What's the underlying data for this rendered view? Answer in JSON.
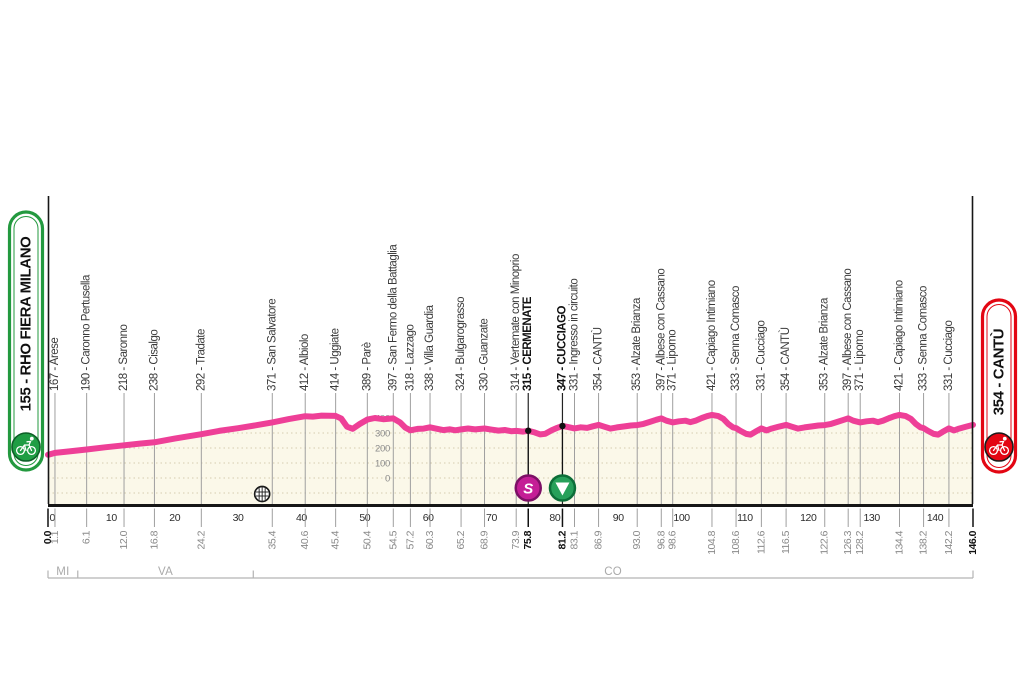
{
  "colors": {
    "profile_pink": "#ee3f97",
    "fill_cream": "#fbf8e9",
    "grid_dots": "#d6cdb0",
    "axis_black": "#161616",
    "waypoint_line": "#9f9f9f",
    "label_text": "#3a3a3a",
    "muted_text": "#8a8a8a",
    "province_gray": "#aaaaaa",
    "start_green": "#1f9d44",
    "finish_red": "#e30613",
    "sprint_fill": "#c41e96",
    "sprint_stroke": "#7d1066",
    "feed_fill": "#27a05a",
    "feed_stroke": "#0c6e38"
  },
  "chart_data": {
    "type": "line",
    "subject": "cycling-stage-elevation-profile",
    "x_unit": "km",
    "y_unit": "m",
    "xlim": [
      0,
      146
    ],
    "x_ticks": [
      0,
      10,
      20,
      30,
      40,
      50,
      60,
      70,
      80,
      90,
      100,
      110,
      120,
      130,
      140
    ],
    "elevation_scale_labels": [
      400,
      300,
      200,
      100,
      0
    ],
    "grid": true,
    "start": {
      "km": 0.0,
      "elevation": 155,
      "label": "155 - RHO FIERA MILANO",
      "distance_label": "0.0"
    },
    "finish": {
      "km": 146.0,
      "elevation": 354,
      "label": "354 - CANTÙ",
      "distance_label": "146.0"
    },
    "waypoints": [
      {
        "km": 1.1,
        "elevation": 167,
        "name": "Arese"
      },
      {
        "km": 6.1,
        "elevation": 190,
        "name": "Caronno Pertusella"
      },
      {
        "km": 12.0,
        "elevation": 218,
        "name": "Saronno"
      },
      {
        "km": 16.8,
        "elevation": 238,
        "name": "Cisalgo"
      },
      {
        "km": 24.2,
        "elevation": 292,
        "name": "Tradate"
      },
      {
        "km": 35.4,
        "elevation": 371,
        "name": "San Salvatore"
      },
      {
        "km": 40.6,
        "elevation": 412,
        "name": "Albiolo"
      },
      {
        "km": 45.4,
        "elevation": 414,
        "name": "Uggiate"
      },
      {
        "km": 50.4,
        "elevation": 389,
        "name": "Parè"
      },
      {
        "km": 54.5,
        "elevation": 397,
        "name": "San Fermo della Battaglia"
      },
      {
        "km": 57.2,
        "elevation": 318,
        "name": "Lazzago"
      },
      {
        "km": 60.3,
        "elevation": 338,
        "name": "Villa Guardia"
      },
      {
        "km": 65.2,
        "elevation": 324,
        "name": "Bulgarograsso"
      },
      {
        "km": 68.9,
        "elevation": 330,
        "name": "Guanzate"
      },
      {
        "km": 73.9,
        "elevation": 314,
        "name": "Vertemate con Minoprio"
      },
      {
        "km": 75.8,
        "elevation": 315,
        "name": "CERMENATE",
        "bold": true,
        "marker": "sprint"
      },
      {
        "km": 81.2,
        "elevation": 347,
        "name": "CUCCIAGO",
        "bold": true,
        "marker": "feed"
      },
      {
        "km": 83.1,
        "elevation": 331,
        "name": "Ingresso in circuito"
      },
      {
        "km": 86.9,
        "elevation": 354,
        "name": "CANTÙ"
      },
      {
        "km": 93.0,
        "elevation": 353,
        "name": "Alzate Brianza"
      },
      {
        "km": 96.8,
        "elevation": 397,
        "name": "Albese con Cassano"
      },
      {
        "km": 98.6,
        "elevation": 371,
        "name": "Lipomo"
      },
      {
        "km": 104.8,
        "elevation": 421,
        "name": "Capiago Intimiano"
      },
      {
        "km": 108.6,
        "elevation": 333,
        "name": "Senna Comasco"
      },
      {
        "km": 112.6,
        "elevation": 331,
        "name": "Cucciago"
      },
      {
        "km": 116.5,
        "elevation": 354,
        "name": "CANTÙ"
      },
      {
        "km": 122.6,
        "elevation": 353,
        "name": "Alzate Brianza"
      },
      {
        "km": 126.3,
        "elevation": 397,
        "name": "Albese con Cassano"
      },
      {
        "km": 128.2,
        "elevation": 371,
        "name": "Lipomo"
      },
      {
        "km": 134.4,
        "elevation": 421,
        "name": "Capiago Intimiano"
      },
      {
        "km": 138.2,
        "elevation": 333,
        "name": "Senna Comasco"
      },
      {
        "km": 142.2,
        "elevation": 331,
        "name": "Cucciago"
      }
    ],
    "markers": {
      "sprint_km": 75.8,
      "sprint_glyph": "S",
      "feed_km": 81.2
    },
    "level_crossing_km": 33.8,
    "provinces": [
      {
        "code": "MI",
        "from_km": 0,
        "to_km": 4.7
      },
      {
        "code": "VA",
        "from_km": 4.7,
        "to_km": 32.4
      },
      {
        "code": "CO",
        "from_km": 32.4,
        "to_km": 146
      }
    ],
    "profile": [
      [
        0,
        155
      ],
      [
        1.1,
        167
      ],
      [
        3,
        176
      ],
      [
        6.1,
        190
      ],
      [
        9,
        205
      ],
      [
        12,
        218
      ],
      [
        14.5,
        229
      ],
      [
        16.8,
        238
      ],
      [
        20,
        263
      ],
      [
        24.2,
        292
      ],
      [
        27,
        314
      ],
      [
        30,
        332
      ],
      [
        33,
        353
      ],
      [
        35.4,
        371
      ],
      [
        38,
        393
      ],
      [
        40.6,
        412
      ],
      [
        41.8,
        409
      ],
      [
        43.2,
        416
      ],
      [
        45.4,
        414
      ],
      [
        46.3,
        396
      ],
      [
        47.2,
        342
      ],
      [
        48.1,
        328
      ],
      [
        49.2,
        360
      ],
      [
        50.4,
        389
      ],
      [
        51.6,
        400
      ],
      [
        52.9,
        392
      ],
      [
        54.5,
        397
      ],
      [
        55.6,
        369
      ],
      [
        56.4,
        336
      ],
      [
        57.2,
        318
      ],
      [
        58.3,
        327
      ],
      [
        59.3,
        329
      ],
      [
        60.3,
        338
      ],
      [
        61.4,
        328
      ],
      [
        62.4,
        319
      ],
      [
        63.4,
        325
      ],
      [
        64.3,
        318
      ],
      [
        65.2,
        324
      ],
      [
        66.3,
        330
      ],
      [
        67.4,
        324
      ],
      [
        68.9,
        330
      ],
      [
        70.1,
        322
      ],
      [
        71.1,
        316
      ],
      [
        72.1,
        320
      ],
      [
        73.1,
        312
      ],
      [
        73.9,
        314
      ],
      [
        75,
        309
      ],
      [
        75.8,
        315
      ],
      [
        76.8,
        304
      ],
      [
        77.7,
        291
      ],
      [
        78.5,
        295
      ],
      [
        79.5,
        318
      ],
      [
        80.4,
        335
      ],
      [
        81.2,
        347
      ],
      [
        82.1,
        339
      ],
      [
        83.1,
        331
      ],
      [
        84.1,
        338
      ],
      [
        85.1,
        334
      ],
      [
        86,
        345
      ],
      [
        86.9,
        354
      ],
      [
        87.8,
        342
      ],
      [
        88.8,
        329
      ],
      [
        89.8,
        337
      ],
      [
        91,
        344
      ],
      [
        92,
        350
      ],
      [
        93,
        353
      ],
      [
        94,
        361
      ],
      [
        95,
        374
      ],
      [
        96,
        388
      ],
      [
        96.8,
        397
      ],
      [
        97.6,
        382
      ],
      [
        98.6,
        371
      ],
      [
        99.6,
        378
      ],
      [
        100.6,
        382
      ],
      [
        101.4,
        373
      ],
      [
        102.2,
        382
      ],
      [
        103.2,
        400
      ],
      [
        104,
        412
      ],
      [
        104.8,
        421
      ],
      [
        105.8,
        413
      ],
      [
        106.6,
        394
      ],
      [
        107.4,
        359
      ],
      [
        108.1,
        338
      ],
      [
        108.6,
        333
      ],
      [
        109.3,
        314
      ],
      [
        110.2,
        294
      ],
      [
        110.9,
        289
      ],
      [
        111.6,
        307
      ],
      [
        112.6,
        331
      ],
      [
        113.4,
        317
      ],
      [
        114.2,
        329
      ],
      [
        115.2,
        341
      ],
      [
        116.5,
        354
      ],
      [
        117.4,
        342
      ],
      [
        118.4,
        329
      ],
      [
        119.4,
        337
      ],
      [
        120.6,
        344
      ],
      [
        121.6,
        350
      ],
      [
        122.6,
        353
      ],
      [
        123.6,
        361
      ],
      [
        124.6,
        374
      ],
      [
        125.6,
        388
      ],
      [
        126.3,
        397
      ],
      [
        127.1,
        382
      ],
      [
        128.2,
        371
      ],
      [
        129.2,
        378
      ],
      [
        130.2,
        382
      ],
      [
        131,
        373
      ],
      [
        131.8,
        382
      ],
      [
        132.8,
        400
      ],
      [
        133.6,
        412
      ],
      [
        134.4,
        421
      ],
      [
        135.4,
        413
      ],
      [
        136.2,
        394
      ],
      [
        137,
        359
      ],
      [
        137.7,
        338
      ],
      [
        138.2,
        333
      ],
      [
        138.9,
        314
      ],
      [
        139.8,
        294
      ],
      [
        140.5,
        289
      ],
      [
        141.2,
        307
      ],
      [
        142.2,
        331
      ],
      [
        143,
        317
      ],
      [
        143.8,
        329
      ],
      [
        144.8,
        341
      ],
      [
        146,
        354
      ]
    ]
  }
}
